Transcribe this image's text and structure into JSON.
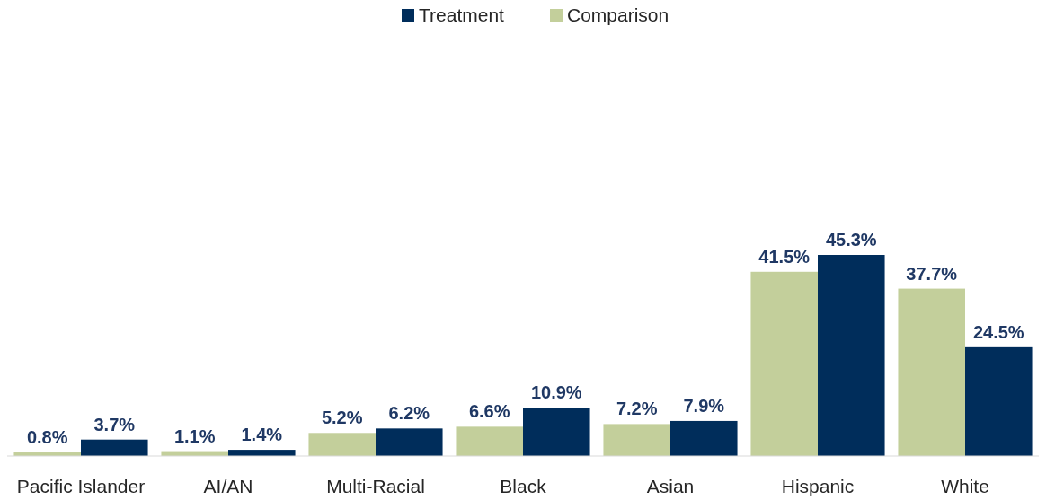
{
  "chart_data": {
    "type": "bar",
    "categories": [
      "Pacific Islander",
      "AI/AN",
      "Multi-Racial",
      "Black",
      "Asian",
      "Hispanic",
      "White"
    ],
    "series": [
      {
        "name": "Comparison",
        "color": "#c3cf9b",
        "values": [
          0.8,
          1.1,
          5.2,
          6.6,
          7.2,
          41.5,
          37.7
        ],
        "value_labels": [
          "0.8%",
          "1.1%",
          "5.2%",
          "6.6%",
          "7.2%",
          "41.5%",
          "37.7%"
        ]
      },
      {
        "name": "Treatment",
        "color": "#002d5b",
        "values": [
          3.7,
          1.4,
          6.2,
          10.9,
          7.9,
          45.3,
          24.5
        ],
        "value_labels": [
          "3.7%",
          "1.4%",
          "6.2%",
          "10.9%",
          "7.9%",
          "45.3%",
          "24.5%"
        ]
      }
    ],
    "legend": "top"
  }
}
